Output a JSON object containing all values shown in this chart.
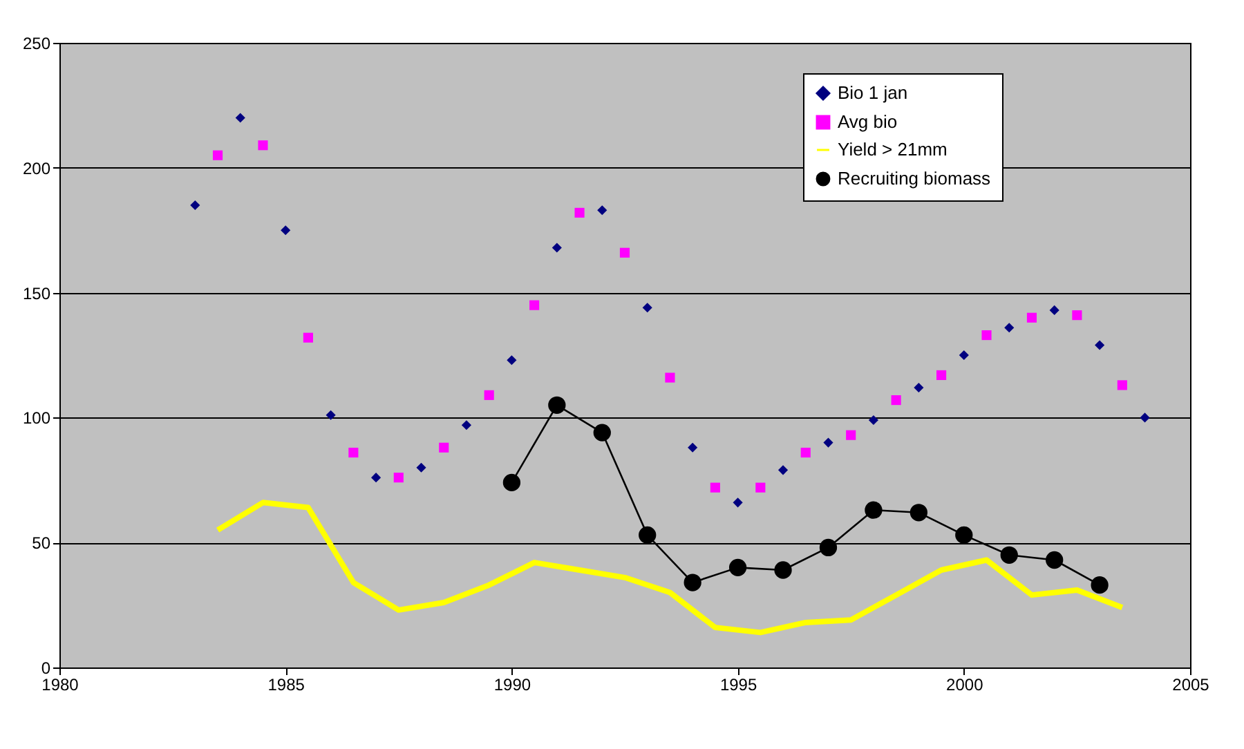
{
  "chart_data": {
    "type": "scatter",
    "xlim": [
      1980,
      2005
    ],
    "xticks": [
      1980,
      1985,
      1990,
      1995,
      2000,
      2005
    ],
    "ylim": [
      0,
      250
    ],
    "yticks": [
      0,
      50,
      100,
      150,
      200,
      250
    ],
    "grid": "y",
    "legend": "top right",
    "series": [
      {
        "name": "Bio 1 jan",
        "marker": "diamond",
        "color": "#000080",
        "x": [
          1983,
          1984,
          1985,
          1986,
          1987,
          1988,
          1989,
          1990,
          1991,
          1992,
          1993,
          1994,
          1995,
          1996,
          1997,
          1998,
          1999,
          2000,
          2001,
          2002,
          2003,
          2004
        ],
        "values": [
          185,
          220,
          175,
          101,
          76,
          80,
          97,
          123,
          168,
          183,
          144,
          88,
          66,
          79,
          90,
          99,
          112,
          125,
          136,
          143,
          129,
          100
        ]
      },
      {
        "name": "Avg bio",
        "marker": "square",
        "color": "#ff00ff",
        "x": [
          1983.5,
          1984.5,
          1985.5,
          1986.5,
          1987.5,
          1988.5,
          1989.5,
          1990.5,
          1991.5,
          1992.5,
          1993.5,
          1994.5,
          1995.5,
          1996.5,
          1997.5,
          1998.5,
          1999.5,
          2000.5,
          2001.5,
          2002.5,
          2003.5
        ],
        "values": [
          205,
          209,
          132,
          86,
          76,
          88,
          109,
          145,
          182,
          166,
          116,
          72,
          72,
          86,
          93,
          107,
          117,
          133,
          140,
          141,
          113
        ]
      },
      {
        "name": "Yield > 21mm",
        "type": "line",
        "marker": "none",
        "color": "#ffff00",
        "x": [
          1983.5,
          1984.5,
          1985.5,
          1986.5,
          1987.5,
          1988.5,
          1989.5,
          1990.5,
          1991.5,
          1992.5,
          1993.5,
          1994.5,
          1995.5,
          1996.5,
          1997.5,
          1998.5,
          1999.5,
          2000.5,
          2001.5,
          2002.5,
          2003.5
        ],
        "values": [
          55,
          66,
          64,
          34,
          23,
          26,
          33,
          42,
          39,
          36,
          30,
          16,
          14,
          18,
          19,
          29,
          39,
          43,
          29,
          31,
          24
        ]
      },
      {
        "name": "Recruiting biomass",
        "type": "line",
        "marker": "circle",
        "color": "#000000",
        "x": [
          1990,
          1991,
          1992,
          1993,
          1994,
          1995,
          1996,
          1997,
          1998,
          1999,
          2000,
          2001,
          2002,
          2003
        ],
        "values": [
          74,
          105,
          94,
          53,
          34,
          40,
          39,
          48,
          63,
          62,
          53,
          45,
          43,
          33
        ]
      }
    ]
  }
}
